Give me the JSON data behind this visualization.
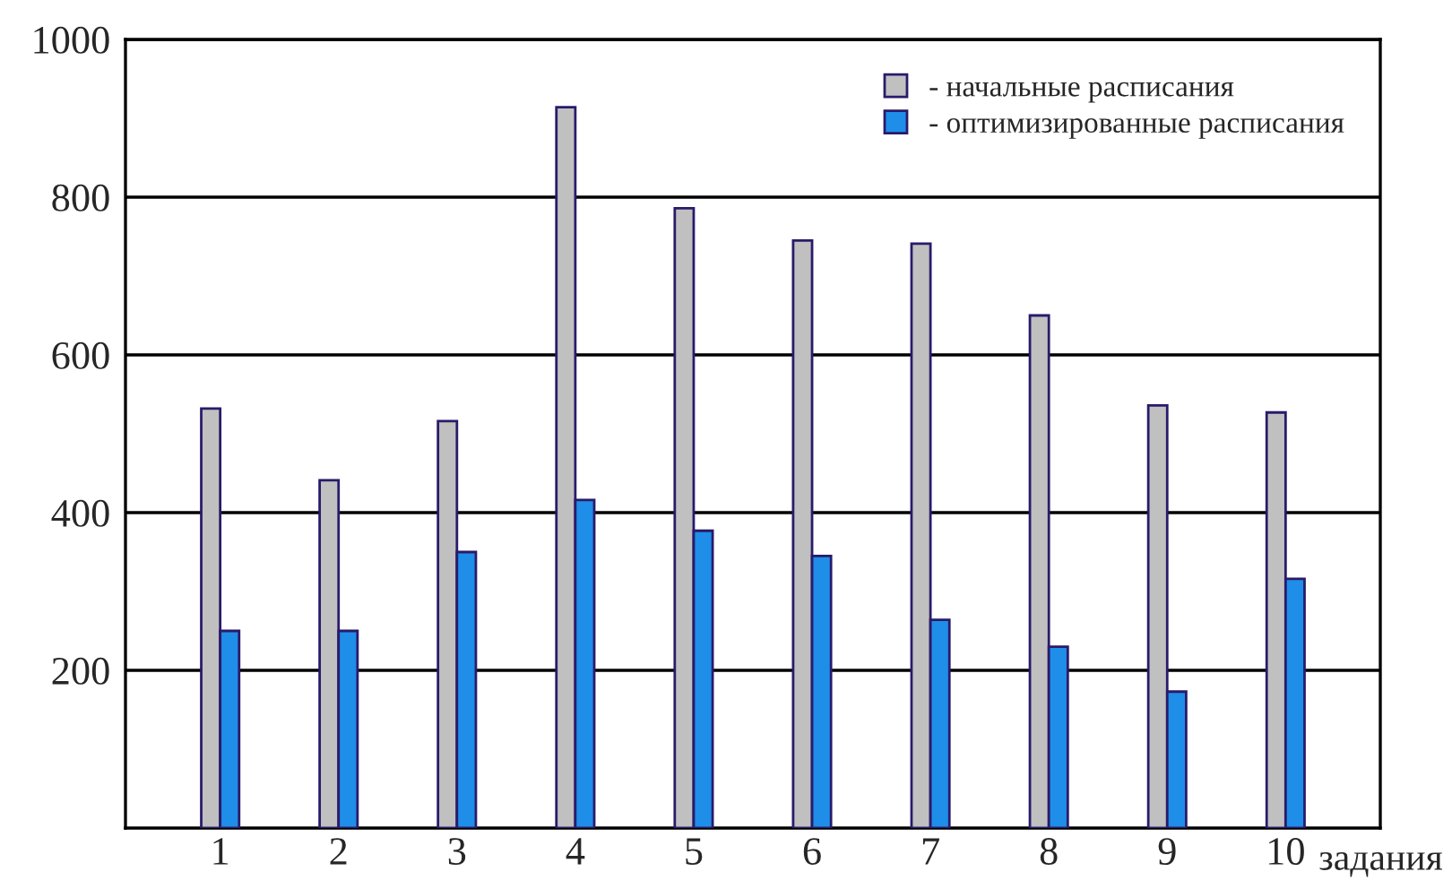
{
  "chart_data": {
    "type": "bar",
    "xlabel": "задания",
    "categories": [
      "1",
      "2",
      "3",
      "4",
      "5",
      "6",
      "7",
      "8",
      "9",
      "10"
    ],
    "series": [
      {
        "name": "- начальные расписания",
        "color": "#c0c0c0",
        "values": [
          532,
          441,
          516,
          914,
          786,
          745,
          741,
          650,
          536,
          527
        ]
      },
      {
        "name": "- оптимизированные расписания",
        "color": "#1e8ee8",
        "values": [
          250,
          250,
          350,
          416,
          377,
          345,
          264,
          230,
          173,
          316
        ]
      }
    ],
    "ylim": [
      0,
      1000
    ],
    "yticks": [
      200,
      400,
      600,
      800,
      1000
    ],
    "grid": "y",
    "legend": "top right"
  }
}
